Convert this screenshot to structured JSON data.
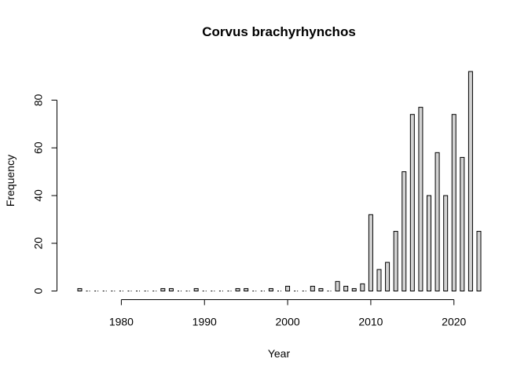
{
  "chart_data": {
    "type": "bar",
    "title": "Corvus brachyrhynchos",
    "xlabel": "Year",
    "ylabel": "Frequency",
    "x": [
      1975,
      1976,
      1977,
      1978,
      1979,
      1980,
      1981,
      1982,
      1983,
      1984,
      1985,
      1986,
      1987,
      1988,
      1989,
      1990,
      1991,
      1992,
      1993,
      1994,
      1995,
      1996,
      1997,
      1998,
      1999,
      2000,
      2001,
      2002,
      2003,
      2004,
      2005,
      2006,
      2007,
      2008,
      2009,
      2010,
      2011,
      2012,
      2013,
      2014,
      2015,
      2016,
      2017,
      2018,
      2019,
      2020,
      2021,
      2022,
      2023
    ],
    "values": [
      1,
      0,
      0,
      0,
      0,
      0,
      0,
      0,
      0,
      0,
      1,
      1,
      0,
      0,
      1,
      0,
      0,
      0,
      0,
      1,
      1,
      0,
      0,
      1,
      0,
      2,
      0,
      0,
      2,
      1,
      0,
      4,
      2,
      1,
      3,
      32,
      9,
      12,
      25,
      50,
      74,
      77,
      40,
      58,
      40,
      74,
      56,
      92,
      25
    ],
    "xlim": [
      1975,
      2023
    ],
    "ylim": [
      0,
      92
    ],
    "xticks": [
      1980,
      1990,
      2000,
      2010,
      2020
    ],
    "yticks": [
      0,
      20,
      40,
      60,
      80
    ],
    "grid": false,
    "legend": "none"
  }
}
